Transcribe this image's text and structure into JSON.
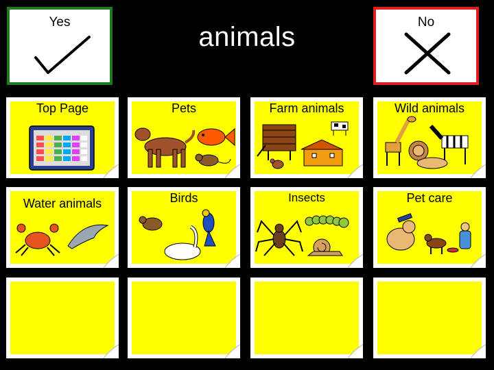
{
  "header": {
    "title": "animals",
    "yes_label": "Yes",
    "no_label": "No"
  },
  "colors": {
    "background": "#000000",
    "card_fill": "#ffff00",
    "yes_border": "#1e7a1e",
    "no_border": "#e01e1e"
  },
  "grid": {
    "cards": [
      {
        "label": "Top Page",
        "icon": "grid-board-icon"
      },
      {
        "label": "Pets",
        "icon": "pets-icon"
      },
      {
        "label": "Farm animals",
        "icon": "farm-animals-icon"
      },
      {
        "label": "Wild animals",
        "icon": "wild-animals-icon"
      },
      {
        "label": "Water animals",
        "icon": "water-animals-icon"
      },
      {
        "label": "Birds",
        "icon": "birds-icon"
      },
      {
        "label": "Insects",
        "icon": "insects-icon"
      },
      {
        "label": "Pet care",
        "icon": "pet-care-icon"
      },
      {
        "label": "",
        "icon": ""
      },
      {
        "label": "",
        "icon": ""
      },
      {
        "label": "",
        "icon": ""
      },
      {
        "label": "",
        "icon": ""
      }
    ]
  }
}
